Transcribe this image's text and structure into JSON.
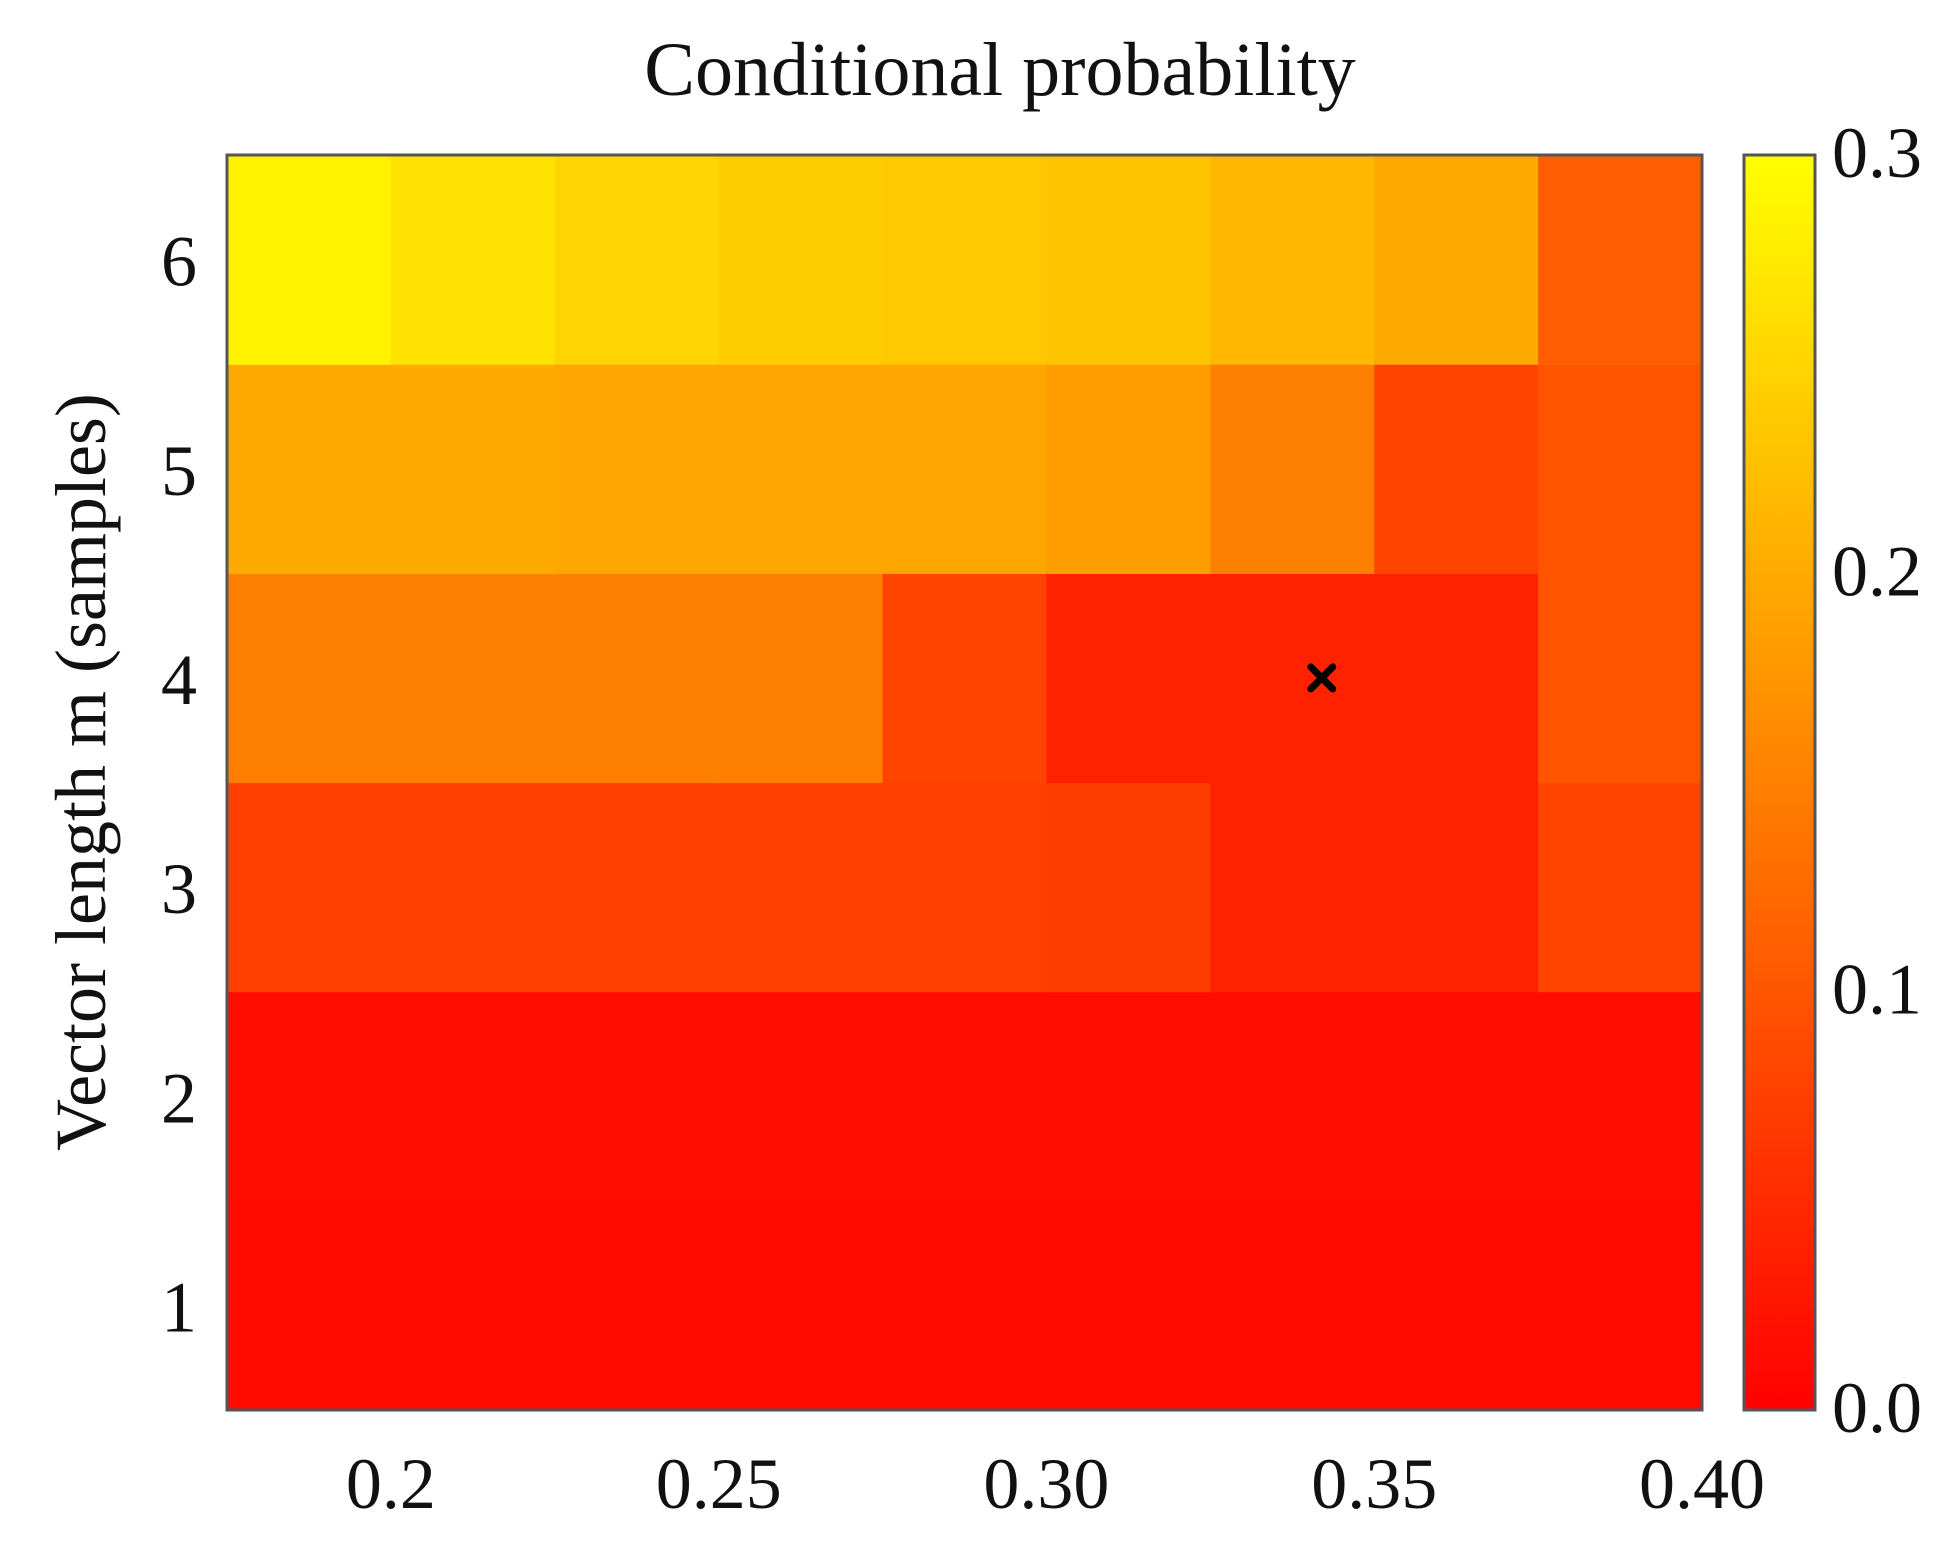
{
  "chart_data": {
    "type": "heatmap",
    "title": "Conditional probability",
    "xlabel": "",
    "ylabel": "Vector length m (samples)",
    "x_tick_labels": [
      "0.2",
      "0.25",
      "0.30",
      "0.35",
      "0.40"
    ],
    "x_tick_values": [
      0.2,
      0.25,
      0.3,
      0.35,
      0.4
    ],
    "xlim": [
      0.175,
      0.4
    ],
    "x_columns": [
      0.1875,
      0.2125,
      0.2375,
      0.2625,
      0.2875,
      0.3125,
      0.3375,
      0.3625,
      0.3875
    ],
    "y_rows": [
      1,
      2,
      3,
      4,
      5,
      6
    ],
    "y_tick_labels": [
      "1",
      "2",
      "3",
      "4",
      "5",
      "6"
    ],
    "values": [
      [
        0.01,
        0.01,
        0.01,
        0.01,
        0.01,
        0.01,
        0.01,
        0.01,
        0.01
      ],
      [
        0.015,
        0.015,
        0.015,
        0.015,
        0.015,
        0.015,
        0.015,
        0.015,
        0.015
      ],
      [
        0.075,
        0.075,
        0.075,
        0.075,
        0.075,
        0.07,
        0.04,
        0.04,
        0.08
      ],
      [
        0.15,
        0.15,
        0.15,
        0.15,
        0.08,
        0.04,
        0.04,
        0.04,
        0.1
      ],
      [
        0.2,
        0.2,
        0.195,
        0.195,
        0.195,
        0.185,
        0.15,
        0.08,
        0.1
      ],
      [
        0.285,
        0.265,
        0.25,
        0.24,
        0.235,
        0.23,
        0.215,
        0.2,
        0.11
      ]
    ],
    "colorbar": {
      "min": 0.0,
      "max": 0.3,
      "tick_labels": [
        "0.3",
        "0.2",
        "0.1",
        "0.0"
      ],
      "tick_values": [
        0.3,
        0.2,
        0.1,
        0.0
      ],
      "colormap": [
        "#ff0000",
        "#ff8000",
        "#ffff00"
      ]
    },
    "marker": {
      "symbol": "x",
      "x": 0.342,
      "y": 4,
      "color": "#000000"
    },
    "grid": false,
    "legend": "none"
  }
}
